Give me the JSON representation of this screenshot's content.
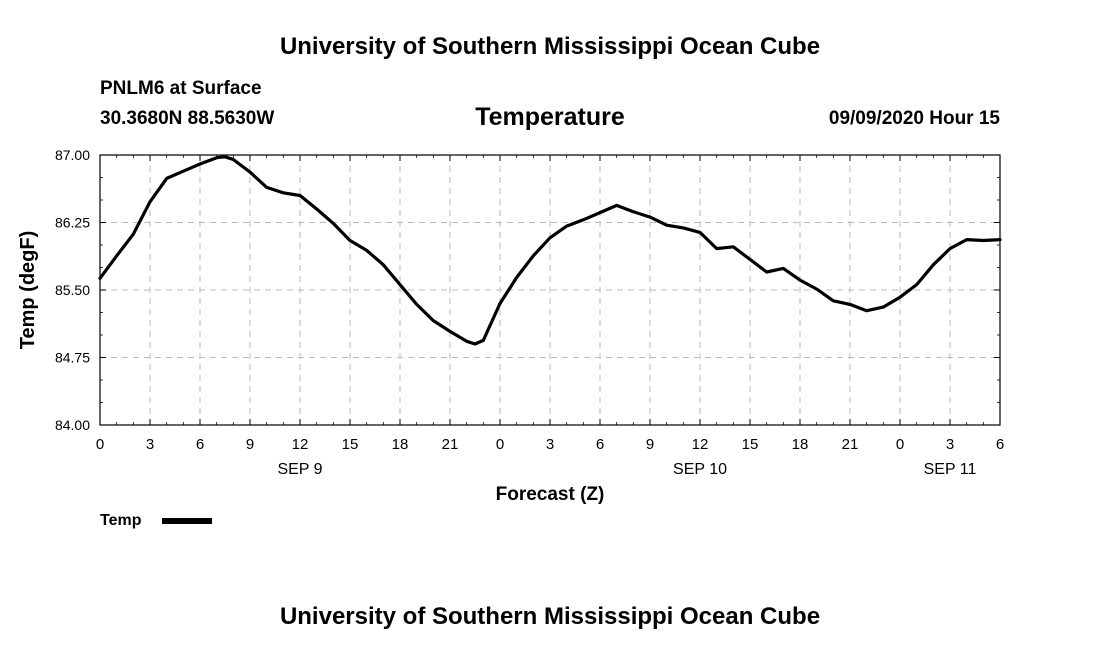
{
  "header": {
    "title_top": "University of Southern Mississippi Ocean Cube",
    "station": "PNLM6 at Surface",
    "coords": "30.3680N 88.5630W",
    "variable": "Temperature",
    "datetime": "09/09/2020 Hour 15"
  },
  "footer": {
    "title_bottom": "University of Southern Mississippi Ocean Cube"
  },
  "colors": {
    "line": "#000000",
    "grid": "#bbbbbb",
    "background": "#ffffff"
  },
  "chart_data": {
    "type": "line",
    "title": "Temperature",
    "xlabel": "Forecast (Z)",
    "ylabel": "Temp (degF)",
    "x_unit": "forecast hours since SEP 9 00Z",
    "xlim": [
      0,
      54
    ],
    "ylim": [
      84.0,
      87.0
    ],
    "y_ticks": [
      "84.00",
      "84.75",
      "85.50",
      "86.25",
      "87.00"
    ],
    "y_tick_values": [
      84.0,
      84.75,
      85.5,
      86.25,
      87.0
    ],
    "x_tick_values": [
      0,
      3,
      6,
      9,
      12,
      15,
      18,
      21,
      24,
      27,
      30,
      33,
      36,
      39,
      42,
      45,
      48,
      51,
      54
    ],
    "x_tick_labels": [
      "0",
      "3",
      "6",
      "9",
      "12",
      "15",
      "18",
      "21",
      "0",
      "3",
      "6",
      "9",
      "12",
      "15",
      "18",
      "21",
      "0",
      "3",
      "6"
    ],
    "date_labels": [
      {
        "label": "SEP 9",
        "x": 12
      },
      {
        "label": "SEP 10",
        "x": 36
      },
      {
        "label": "SEP 11",
        "x": 51
      }
    ],
    "grid": true,
    "legend": [
      {
        "name": "Temp",
        "placement": "bottom-left"
      }
    ],
    "series": [
      {
        "name": "Temp",
        "x": [
          0,
          1,
          2,
          3,
          4,
          5,
          6,
          7,
          7.5,
          8,
          9,
          10,
          11,
          12,
          13,
          14,
          15,
          16,
          17,
          18,
          19,
          20,
          21,
          22,
          22.5,
          23,
          24,
          25,
          26,
          27,
          28,
          29,
          30,
          31,
          32,
          33,
          34,
          35,
          36,
          37,
          38,
          39,
          40,
          41,
          42,
          43,
          44,
          45,
          46,
          47,
          48,
          49,
          50,
          51,
          52,
          53,
          54
        ],
        "values": [
          85.63,
          85.88,
          86.12,
          86.48,
          86.74,
          86.82,
          86.9,
          86.97,
          86.98,
          86.95,
          86.81,
          86.64,
          86.58,
          86.55,
          86.4,
          86.24,
          86.05,
          85.94,
          85.78,
          85.56,
          85.34,
          85.16,
          85.04,
          84.93,
          84.9,
          84.94,
          85.35,
          85.64,
          85.88,
          86.08,
          86.21,
          86.28,
          86.36,
          86.44,
          86.37,
          86.31,
          86.22,
          86.19,
          86.14,
          85.96,
          85.98,
          85.84,
          85.7,
          85.74,
          85.61,
          85.51,
          85.38,
          85.34,
          85.27,
          85.31,
          85.42,
          85.56,
          85.78,
          85.96,
          86.06,
          86.05,
          86.06
        ]
      }
    ]
  }
}
